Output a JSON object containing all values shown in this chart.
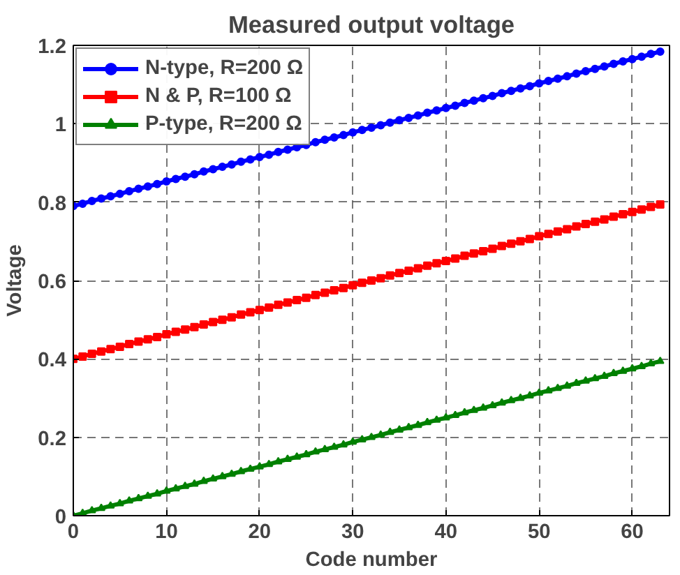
{
  "chart_data": {
    "type": "line",
    "title": "Measured output voltage",
    "xlabel": "Code number",
    "ylabel": "Voltage",
    "x": [
      0,
      1,
      2,
      3,
      4,
      5,
      6,
      7,
      8,
      9,
      10,
      11,
      12,
      13,
      14,
      15,
      16,
      17,
      18,
      19,
      20,
      21,
      22,
      23,
      24,
      25,
      26,
      27,
      28,
      29,
      30,
      31,
      32,
      33,
      34,
      35,
      36,
      37,
      38,
      39,
      40,
      41,
      42,
      43,
      44,
      45,
      46,
      47,
      48,
      49,
      50,
      51,
      52,
      53,
      54,
      55,
      56,
      57,
      58,
      59,
      60,
      61,
      62,
      63
    ],
    "xlim": [
      0,
      64
    ],
    "xticks": [
      0,
      10,
      20,
      30,
      40,
      50,
      60
    ],
    "ylim": [
      0,
      1.2
    ],
    "yticks": [
      0,
      0.2,
      0.4,
      0.6,
      0.8,
      1,
      1.2
    ],
    "grid": true,
    "legend": "top left",
    "line_style": "solid",
    "series": [
      {
        "name": "N-type, R=200 Ω",
        "color": "#0000ff",
        "marker": "circle",
        "values": [
          0.79,
          0.796,
          0.803,
          0.809,
          0.815,
          0.821,
          0.828,
          0.834,
          0.84,
          0.846,
          0.853,
          0.859,
          0.865,
          0.871,
          0.878,
          0.884,
          0.89,
          0.896,
          0.903,
          0.909,
          0.915,
          0.921,
          0.928,
          0.934,
          0.94,
          0.946,
          0.953,
          0.959,
          0.965,
          0.971,
          0.978,
          0.984,
          0.99,
          0.996,
          1.003,
          1.009,
          1.015,
          1.021,
          1.028,
          1.034,
          1.04,
          1.046,
          1.053,
          1.059,
          1.065,
          1.071,
          1.078,
          1.084,
          1.09,
          1.096,
          1.103,
          1.109,
          1.115,
          1.121,
          1.128,
          1.134,
          1.14,
          1.146,
          1.153,
          1.159,
          1.165,
          1.171,
          1.178,
          1.184
        ]
      },
      {
        "name": "N & P, R=100 Ω",
        "color": "#ff0000",
        "marker": "square",
        "values": [
          0.4,
          0.406,
          0.413,
          0.419,
          0.425,
          0.431,
          0.438,
          0.444,
          0.45,
          0.456,
          0.463,
          0.469,
          0.475,
          0.481,
          0.488,
          0.494,
          0.5,
          0.506,
          0.513,
          0.519,
          0.525,
          0.531,
          0.538,
          0.544,
          0.55,
          0.556,
          0.563,
          0.569,
          0.575,
          0.581,
          0.588,
          0.594,
          0.6,
          0.606,
          0.613,
          0.619,
          0.625,
          0.631,
          0.638,
          0.644,
          0.65,
          0.656,
          0.663,
          0.669,
          0.675,
          0.681,
          0.688,
          0.694,
          0.7,
          0.706,
          0.713,
          0.719,
          0.725,
          0.731,
          0.738,
          0.744,
          0.75,
          0.756,
          0.763,
          0.769,
          0.775,
          0.781,
          0.788,
          0.794
        ]
      },
      {
        "name": "P-type, R=200 Ω",
        "color": "#008000",
        "marker": "triangle",
        "values": [
          0,
          0.006,
          0.013,
          0.019,
          0.025,
          0.031,
          0.038,
          0.044,
          0.05,
          0.056,
          0.063,
          0.069,
          0.075,
          0.081,
          0.088,
          0.094,
          0.1,
          0.106,
          0.113,
          0.119,
          0.125,
          0.131,
          0.138,
          0.144,
          0.15,
          0.156,
          0.163,
          0.169,
          0.175,
          0.181,
          0.188,
          0.194,
          0.2,
          0.206,
          0.213,
          0.219,
          0.225,
          0.231,
          0.238,
          0.244,
          0.25,
          0.256,
          0.263,
          0.269,
          0.275,
          0.281,
          0.288,
          0.294,
          0.3,
          0.306,
          0.313,
          0.319,
          0.325,
          0.331,
          0.338,
          0.344,
          0.35,
          0.356,
          0.363,
          0.369,
          0.375,
          0.381,
          0.388,
          0.394
        ]
      }
    ]
  }
}
